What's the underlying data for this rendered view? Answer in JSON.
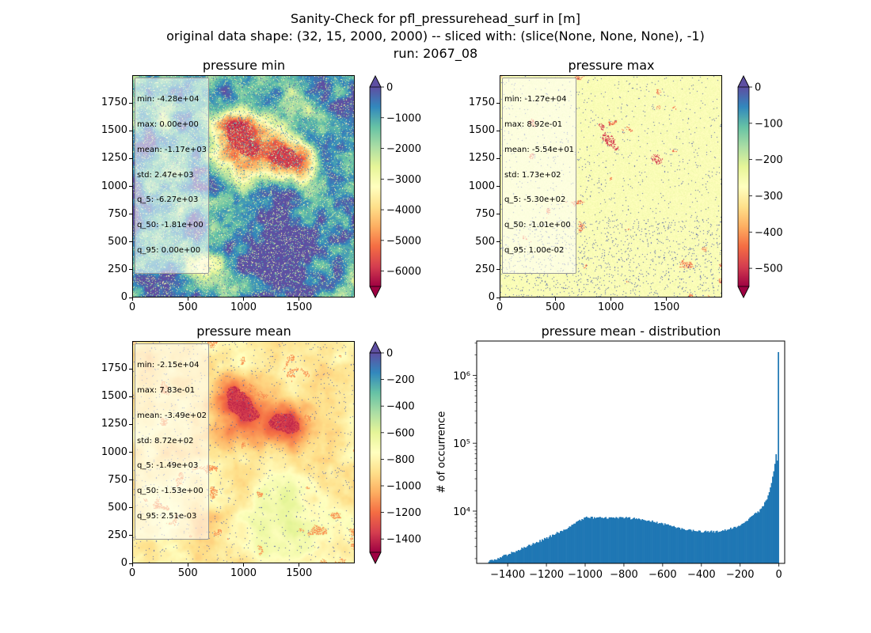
{
  "figure": {
    "suptitle": [
      "Sanity-Check for pfl_pressurehead_surf in [m]",
      "original data shape: (32, 15, 2000, 2000) -- sliced with: (slice(None, None, None), -1)",
      "run: 2067_08"
    ]
  },
  "chart_data": [
    {
      "type": "heatmap",
      "title": "pressure min",
      "colormap": "Spectral",
      "xlim": [
        0,
        2000
      ],
      "ylim": [
        0,
        2000
      ],
      "xticks": [
        "0",
        "500",
        "1000",
        "1500"
      ],
      "yticks": [
        "0",
        "250",
        "500",
        "750",
        "1000",
        "1250",
        "1500",
        "1750"
      ],
      "colorbar": {
        "range": [
          -6500,
          0
        ],
        "ticks": [
          "0",
          "−1000",
          "−2000",
          "−3000",
          "−4000",
          "−5000",
          "−6000"
        ],
        "tick_values": [
          0,
          -1000,
          -2000,
          -3000,
          -4000,
          -5000,
          -6000
        ],
        "extend": "both",
        "under_color": "#9e0142",
        "over_color": "#5e4fa2"
      },
      "stats": [
        "min: -4.28e+04",
        "max: 0.00e+00",
        "mean: -1.17e+03",
        "std: 2.47e+03",
        "q_5: -6.27e+03",
        "q_50: -1.81e+00",
        "q_95: 0.00e+00"
      ]
    },
    {
      "type": "heatmap",
      "title": "pressure max",
      "colormap": "Spectral",
      "xlim": [
        0,
        2000
      ],
      "ylim": [
        0,
        2000
      ],
      "xticks": [
        "0",
        "500",
        "1000",
        "1500"
      ],
      "yticks": [
        "0",
        "250",
        "500",
        "750",
        "1000",
        "1250",
        "1500",
        "1750"
      ],
      "colorbar": {
        "range": [
          -550,
          0
        ],
        "ticks": [
          "0",
          "−100",
          "−200",
          "−300",
          "−400",
          "−500"
        ],
        "tick_values": [
          0,
          -100,
          -200,
          -300,
          -400,
          -500
        ],
        "extend": "both",
        "under_color": "#9e0142",
        "over_color": "#5e4fa2"
      },
      "stats": [
        "min: -1.27e+04",
        "max: 8.92e-01",
        "mean: -5.54e+01",
        "std: 1.73e+02",
        "q_5: -5.30e+02",
        "q_50: -1.01e+00",
        "q_95: 1.00e-02"
      ]
    },
    {
      "type": "heatmap",
      "title": "pressure mean",
      "colormap": "Spectral",
      "xlim": [
        0,
        2000
      ],
      "ylim": [
        0,
        2000
      ],
      "xticks": [
        "0",
        "500",
        "1000",
        "1500"
      ],
      "yticks": [
        "0",
        "250",
        "500",
        "750",
        "1000",
        "1250",
        "1500",
        "1750"
      ],
      "colorbar": {
        "range": [
          -1500,
          0
        ],
        "ticks": [
          "0",
          "−200",
          "−400",
          "−600",
          "−800",
          "−1000",
          "−1200",
          "−1400"
        ],
        "tick_values": [
          0,
          -200,
          -400,
          -600,
          -800,
          -1000,
          -1200,
          -1400
        ],
        "extend": "both",
        "under_color": "#9e0142",
        "over_color": "#5e4fa2"
      },
      "stats": [
        "min: -2.15e+04",
        "max: 7.83e-01",
        "mean: -3.49e+02",
        "std: 8.72e+02",
        "q_5: -1.49e+03",
        "q_50: -1.53e+00",
        "q_95: 2.51e-03"
      ]
    },
    {
      "type": "bar",
      "title": "pressure mean - distribution",
      "ylabel": "# of occurrence",
      "yscale": "log",
      "xlim": [
        -1560,
        30
      ],
      "ylim": [
        1700,
        3200000
      ],
      "xticks": [
        "−1400",
        "−1200",
        "−1000",
        "−800",
        "−600",
        "−400",
        "−200",
        "0"
      ],
      "xtick_values": [
        -1400,
        -1200,
        -1000,
        -800,
        -600,
        -400,
        -200,
        0
      ],
      "yticks": [
        "10⁴",
        "10⁵",
        "10⁶"
      ],
      "ytick_values": [
        10000,
        100000,
        1000000
      ],
      "bar_color": "#1f77b4",
      "x": [
        -1500,
        -1400,
        -1300,
        -1200,
        -1100,
        -1000,
        -900,
        -800,
        -700,
        -600,
        -500,
        -400,
        -300,
        -250,
        -200,
        -150,
        -100,
        -60,
        -40,
        -25,
        -15,
        -8,
        -5,
        -2
      ],
      "y": [
        1800,
        2300,
        3000,
        4000,
        5500,
        8000,
        8000,
        8000,
        7500,
        6500,
        5500,
        5000,
        5000,
        5500,
        6000,
        8000,
        10000,
        15000,
        25000,
        40000,
        70000,
        55000,
        50000,
        2200000
      ]
    }
  ]
}
